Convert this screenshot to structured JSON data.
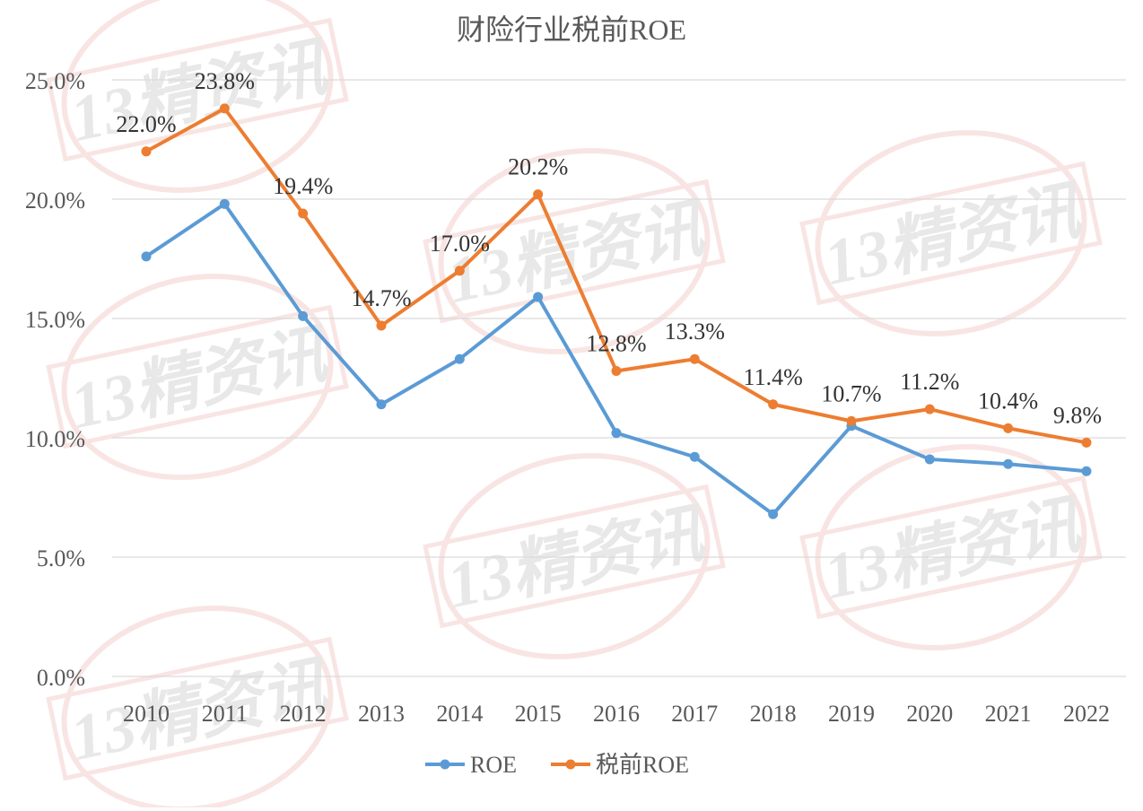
{
  "chart_data": {
    "type": "line",
    "title": "财险行业税前ROE",
    "xlabel": "",
    "ylabel": "",
    "categories": [
      "2010",
      "2011",
      "2012",
      "2013",
      "2014",
      "2015",
      "2016",
      "2017",
      "2018",
      "2019",
      "2020",
      "2021",
      "2022"
    ],
    "ylim": [
      0,
      25
    ],
    "yticks": [
      "0.0%",
      "5.0%",
      "10.0%",
      "15.0%",
      "20.0%",
      "25.0%"
    ],
    "grid": true,
    "legend_placement": "bottom",
    "series": [
      {
        "name": "ROE",
        "color": "#5B9BD5",
        "values": [
          17.6,
          19.8,
          15.1,
          11.4,
          13.3,
          15.9,
          10.2,
          9.2,
          6.8,
          10.5,
          9.1,
          8.9,
          8.6
        ],
        "labels": []
      },
      {
        "name": "税前ROE",
        "color": "#ED7D31",
        "values": [
          22.0,
          23.8,
          19.4,
          14.7,
          17.0,
          20.2,
          12.8,
          13.3,
          11.4,
          10.7,
          11.2,
          10.4,
          9.8
        ],
        "labels": [
          "22.0%",
          "23.8%",
          "19.4%",
          "14.7%",
          "17.0%",
          "20.2%",
          "12.8%",
          "13.3%",
          "11.4%",
          "10.7%",
          "11.2%",
          "10.4%",
          "9.8%"
        ]
      }
    ],
    "watermark": "13精资讯"
  }
}
